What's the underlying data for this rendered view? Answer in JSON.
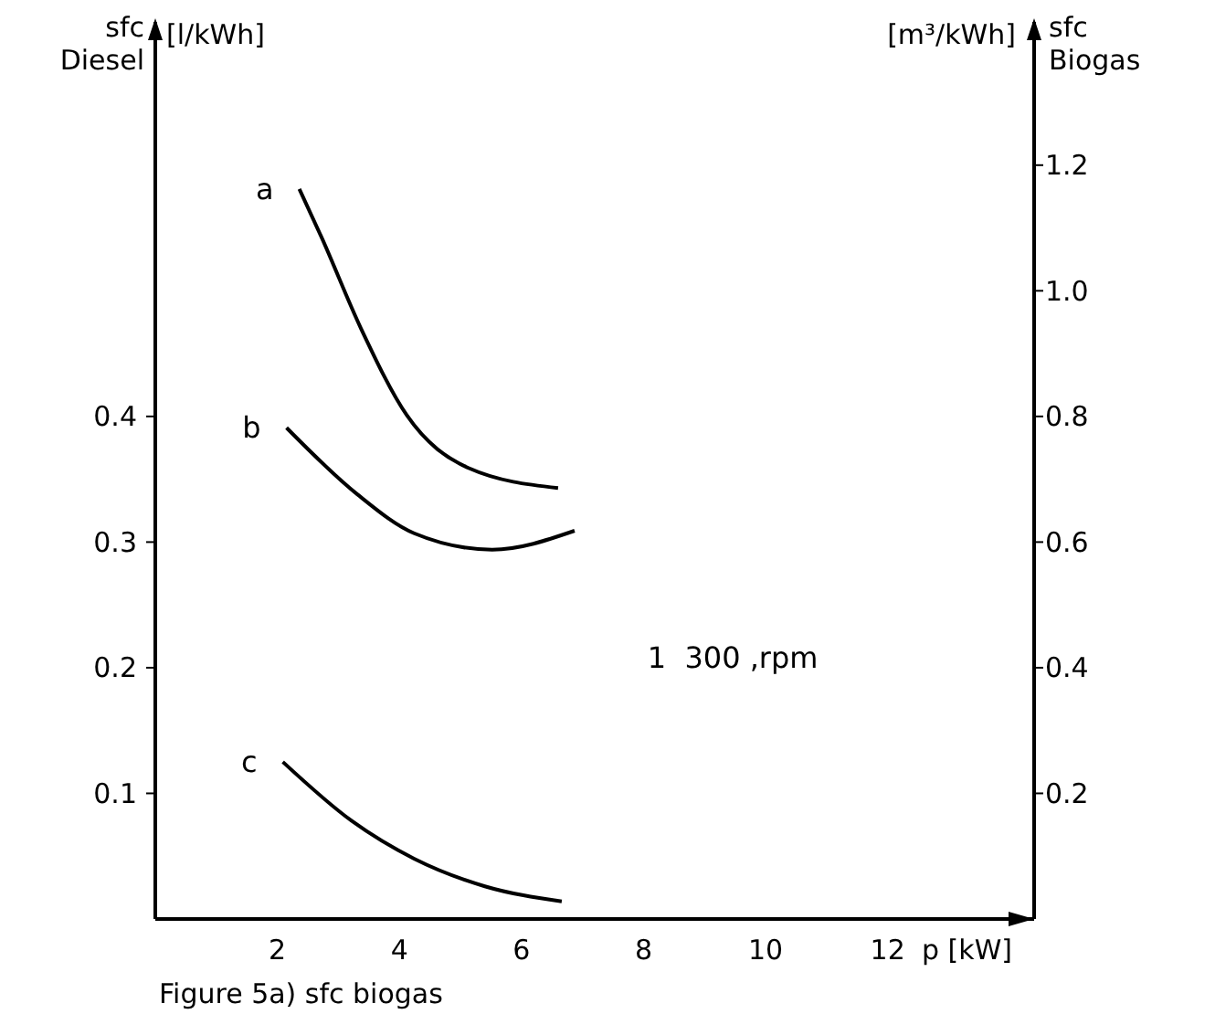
{
  "chart_data": {
    "type": "line",
    "xlabel": "p [kW]",
    "ylabel": "sfc Diesel",
    "y2label": "sfc Biogas",
    "xlim": [
      0,
      14.4
    ],
    "xticks": [
      2,
      4,
      6,
      8,
      10,
      12
    ],
    "ylim": [
      0,
      0.714
    ],
    "yticks": [
      0.1,
      0.2,
      0.3,
      0.4
    ],
    "y2lim": [
      0,
      1.428
    ],
    "y2ticks": [
      {
        "value": 0.2,
        "label": "0.2"
      },
      {
        "value": 0.4,
        "label": "0.4"
      },
      {
        "value": 0.6,
        "label": "0.6"
      },
      {
        "value": 0.8,
        "label": "0.8"
      },
      {
        "value": 1,
        "label": "1.0"
      },
      {
        "value": 1.2,
        "label": "1.2"
      }
    ],
    "grid": false,
    "marker": "none",
    "line_style": "solid",
    "series": [
      {
        "name": "a",
        "color": "#000000",
        "x": [
          2.36,
          2.72,
          3.37,
          4.12,
          5.13,
          6.6
        ],
        "values": [
          0.581,
          0.543,
          0.47,
          0.401,
          0.359,
          0.343
        ]
      },
      {
        "name": "b",
        "color": "#000000",
        "x": [
          2.15,
          3.31,
          4.24,
          5.52,
          6.87
        ],
        "values": [
          0.391,
          0.338,
          0.307,
          0.294,
          0.309
        ]
      },
      {
        "name": "c",
        "color": "#000000",
        "x": [
          2.09,
          3.22,
          4.24,
          5.4,
          6.66
        ],
        "values": [
          0.125,
          0.078,
          0.048,
          0.026,
          0.014
        ]
      }
    ],
    "annotations": [
      "[l/kWh]",
      "[m³/kWh]",
      "Figure 5a) sfc biogas",
      "1  300 ,rpm"
    ]
  }
}
